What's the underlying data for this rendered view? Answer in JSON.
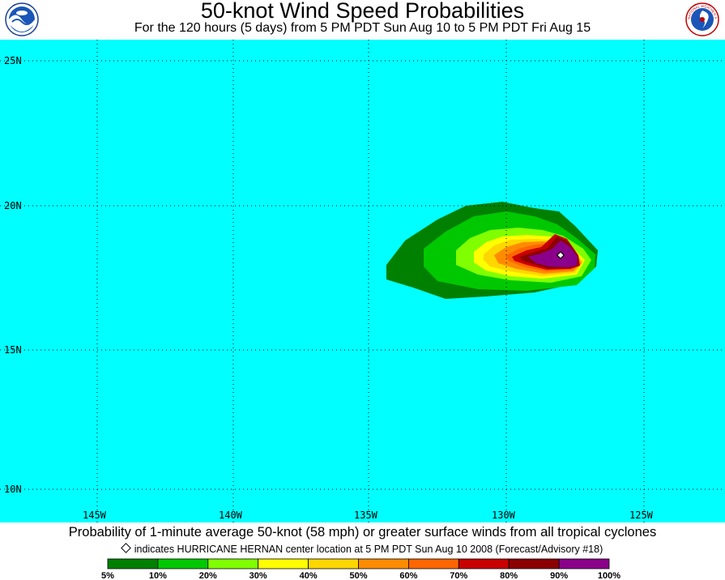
{
  "header": {
    "title": "50-knot Wind Speed Probabilities",
    "subtitle": "For the 120 hours (5 days) from 5 PM PDT Sun Aug 10 to 5 PM PDT Fri Aug 15"
  },
  "logos": {
    "left": "noaa-logo",
    "right": "nws-logo",
    "right_text": "NATIONAL WEATHER SERVICE"
  },
  "map": {
    "background_color": "#00ffff",
    "lat_labels": [
      "25N",
      "20N",
      "15N",
      "10N"
    ],
    "lon_labels": [
      "145W",
      "140W",
      "135W",
      "130W",
      "125W"
    ],
    "storm_marker": {
      "lat": 18.3,
      "lon": 128.0,
      "icon": "diamond-icon"
    },
    "probability_region_colors": [
      "#008000",
      "#00c800",
      "#80ff00",
      "#ffff00",
      "#ffd700",
      "#ff8c00",
      "#ff6600",
      "#c80000",
      "#8b0000",
      "#8b008b"
    ]
  },
  "caption": "Probability of 1-minute average 50-knot (58 mph) or greater surface winds from all tropical cyclones",
  "legend_note": "indicates HURRICANE HERNAN center location at 5 PM PDT Sun Aug 10 2008 (Forecast/Advisory #18)",
  "colorbar": {
    "colors": [
      "#008000",
      "#00c800",
      "#80ff00",
      "#ffff00",
      "#ffd700",
      "#ff8c00",
      "#ff6600",
      "#c80000",
      "#8b0000",
      "#8b008b"
    ],
    "labels": [
      "5%",
      "10%",
      "20%",
      "30%",
      "40%",
      "50%",
      "60%",
      "70%",
      "80%",
      "90%",
      "100%"
    ]
  }
}
